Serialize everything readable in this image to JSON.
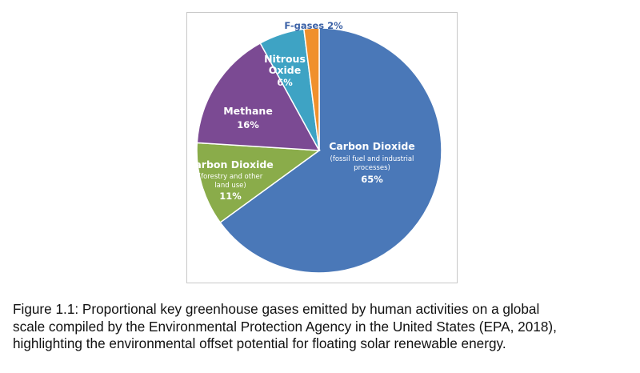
{
  "chart_data": {
    "type": "pie",
    "slices": [
      {
        "label": "Carbon Dioxide",
        "sublabel": "(fossil fuel and industrial processes)",
        "value": 65,
        "value_label": "65%",
        "color": "#4a78b8"
      },
      {
        "label": "Carbon Dioxide",
        "sublabel": "(forestry and other land use)",
        "value": 11,
        "value_label": "11%",
        "color": "#8aac4a"
      },
      {
        "label": "Methane",
        "sublabel": "",
        "value": 16,
        "value_label": "16%",
        "color": "#7b4a93"
      },
      {
        "label": "Nitrous Oxide",
        "sublabel": "",
        "value": 6,
        "value_label": "6%",
        "color": "#3ea3c4"
      },
      {
        "label": "F-gases",
        "sublabel": "",
        "value": 2,
        "value_label": "2%",
        "color": "#f0902c"
      }
    ]
  },
  "labels": {
    "co2_fossil": {
      "title": "Carbon Dioxide",
      "line1": "(fossil fuel and industrial",
      "line2": "processes)",
      "pct": "65%"
    },
    "co2_forestry": {
      "title": "Carbon Dioxide",
      "line1": "(forestry and other",
      "line2": "land use)",
      "pct": "11%"
    },
    "methane": {
      "title": "Methane",
      "pct": "16%"
    },
    "nitrous": {
      "line1": "Nitrous",
      "line2": "Oxide",
      "pct": "6%"
    },
    "fgases": {
      "text": "F-gases 2%"
    }
  },
  "caption": {
    "line1": "Figure 1.1: Proportional key greenhouse gases emitted by human activities on a global",
    "line2": "scale compiled by the Environmental Protection Agency in the United States (EPA, 2018),",
    "line3": "highlighting the environmental offset potential for floating solar renewable energy."
  },
  "colors": {
    "co2_fossil": "#4a78b8",
    "co2_forestry": "#8aac4a",
    "methane": "#7b4a93",
    "nitrous": "#3ea3c4",
    "fgases": "#f0902c"
  }
}
